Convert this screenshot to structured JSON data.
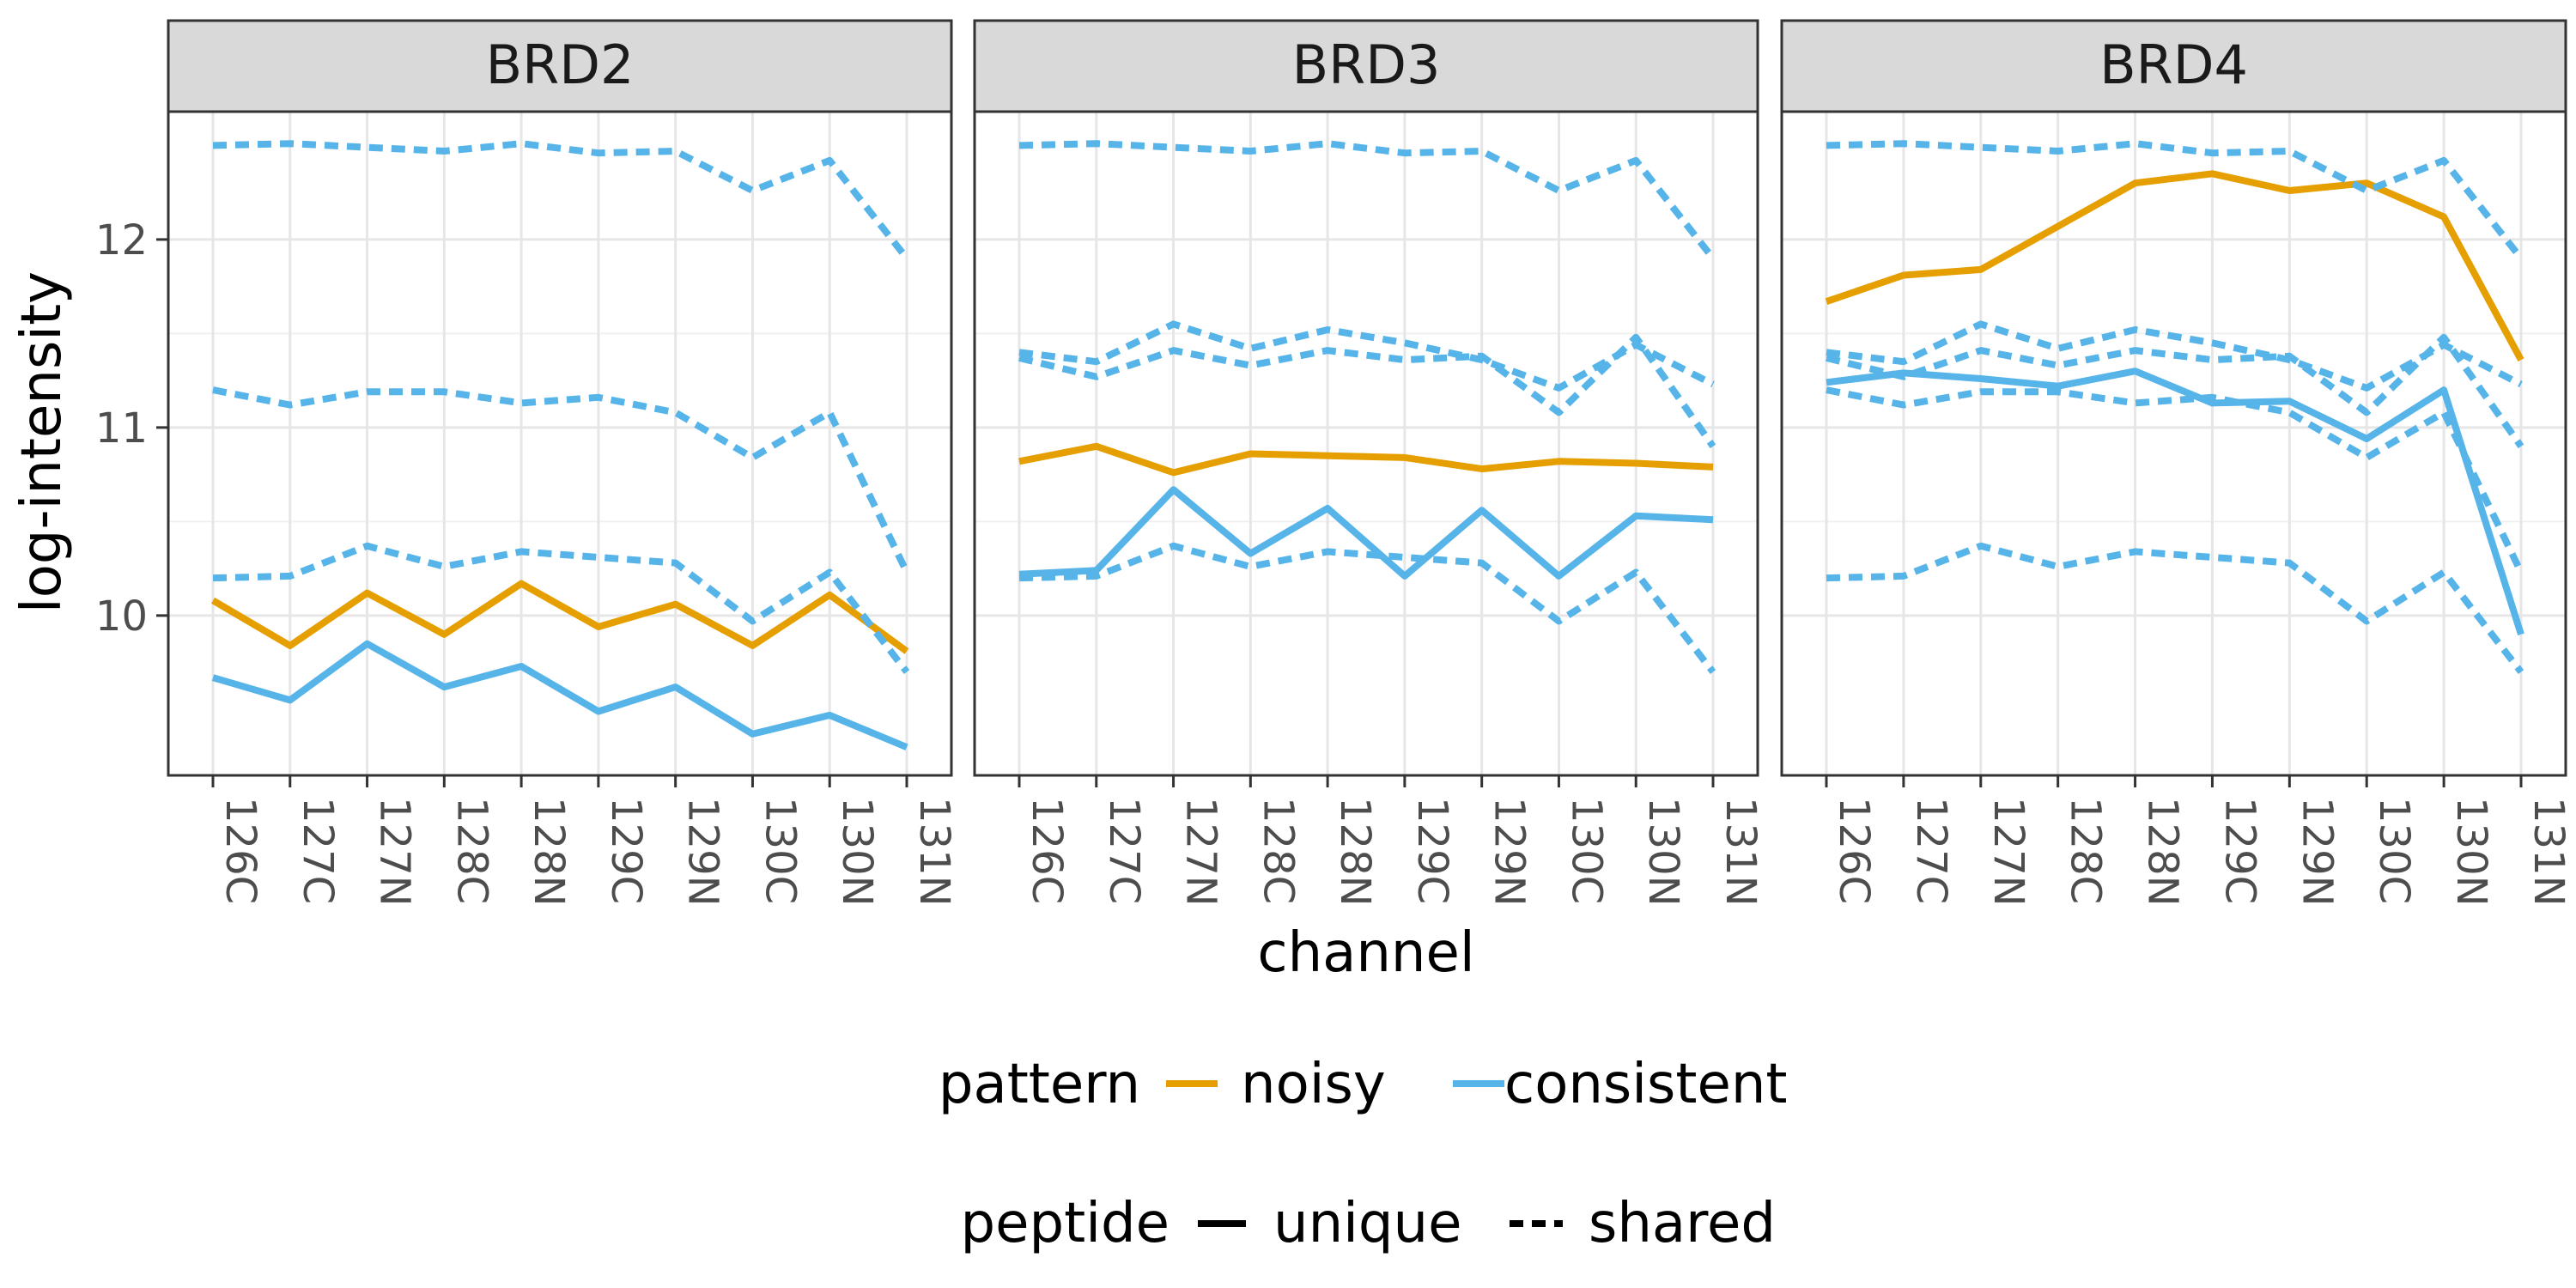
{
  "chart_data": {
    "type": "line",
    "facet_variable": "protein",
    "panels": [
      "BRD2",
      "BRD3",
      "BRD4"
    ],
    "x": [
      "126C",
      "127C",
      "127N",
      "128C",
      "128N",
      "129C",
      "129N",
      "130C",
      "130N",
      "131N"
    ],
    "xlabel": "channel",
    "ylabel": "log-intensity",
    "ylim": [
      9.15,
      12.68
    ],
    "yticks": [
      10,
      11,
      12
    ],
    "grid": true,
    "legend_position": "bottom",
    "legend": {
      "color": {
        "title": "pattern",
        "entries": [
          {
            "label": "noisy",
            "color": "#E69F00"
          },
          {
            "label": "consistent",
            "color": "#56B4E9"
          }
        ]
      },
      "linetype": {
        "title": "peptide",
        "entries": [
          {
            "label": "unique",
            "style": "solid"
          },
          {
            "label": "shared",
            "style": "dashed"
          }
        ]
      }
    },
    "shared_series": {
      "S1": {
        "pattern": "consistent",
        "peptide": "shared",
        "values": [
          12.5,
          12.51,
          12.49,
          12.47,
          12.51,
          12.46,
          12.47,
          12.26,
          12.42,
          11.9
        ]
      },
      "S2": {
        "pattern": "consistent",
        "peptide": "shared",
        "values": [
          11.2,
          11.12,
          11.19,
          11.19,
          11.13,
          11.16,
          11.08,
          10.84,
          11.08,
          10.23
        ]
      },
      "S3": {
        "pattern": "consistent",
        "peptide": "shared",
        "values": [
          10.2,
          10.21,
          10.37,
          10.26,
          10.34,
          10.31,
          10.28,
          9.97,
          10.23,
          9.7
        ]
      },
      "S4": {
        "pattern": "consistent",
        "peptide": "shared",
        "values": [
          11.4,
          11.35,
          11.55,
          11.42,
          11.52,
          11.45,
          11.36,
          11.21,
          11.44,
          11.23
        ]
      },
      "S5": {
        "pattern": "consistent",
        "peptide": "shared",
        "values": [
          11.37,
          11.27,
          11.41,
          11.33,
          11.41,
          11.36,
          11.38,
          11.08,
          11.48,
          10.9
        ]
      }
    },
    "series": [
      {
        "panel": "BRD2",
        "pattern": "noisy",
        "peptide": "unique",
        "values": [
          10.08,
          9.84,
          10.12,
          9.9,
          10.17,
          9.94,
          10.06,
          9.84,
          10.11,
          9.81
        ]
      },
      {
        "panel": "BRD2",
        "pattern": "consistent",
        "peptide": "unique",
        "values": [
          9.67,
          9.55,
          9.85,
          9.62,
          9.73,
          9.49,
          9.62,
          9.37,
          9.47,
          9.3
        ]
      },
      {
        "panel": "BRD2",
        "shared": "S1"
      },
      {
        "panel": "BRD2",
        "shared": "S2"
      },
      {
        "panel": "BRD2",
        "shared": "S3"
      },
      {
        "panel": "BRD3",
        "pattern": "noisy",
        "peptide": "unique",
        "values": [
          10.82,
          10.9,
          10.76,
          10.86,
          10.85,
          10.84,
          10.78,
          10.82,
          10.81,
          10.79
        ]
      },
      {
        "panel": "BRD3",
        "pattern": "consistent",
        "peptide": "unique",
        "values": [
          10.22,
          10.24,
          10.67,
          10.33,
          10.57,
          10.21,
          10.56,
          10.21,
          10.53,
          10.51
        ]
      },
      {
        "panel": "BRD3",
        "shared": "S1"
      },
      {
        "panel": "BRD3",
        "shared": "S4"
      },
      {
        "panel": "BRD3",
        "shared": "S5"
      },
      {
        "panel": "BRD3",
        "shared": "S3"
      },
      {
        "panel": "BRD4",
        "pattern": "noisy",
        "peptide": "unique",
        "values": [
          11.67,
          11.81,
          11.84,
          12.07,
          12.3,
          12.35,
          12.26,
          12.3,
          12.12,
          11.36
        ]
      },
      {
        "panel": "BRD4",
        "pattern": "consistent",
        "peptide": "unique",
        "values": [
          11.24,
          11.29,
          11.26,
          11.22,
          11.3,
          11.13,
          11.14,
          10.94,
          11.2,
          9.9
        ]
      },
      {
        "panel": "BRD4",
        "shared": "S1"
      },
      {
        "panel": "BRD4",
        "shared": "S2"
      },
      {
        "panel": "BRD4",
        "shared": "S3"
      },
      {
        "panel": "BRD4",
        "shared": "S4"
      },
      {
        "panel": "BRD4",
        "shared": "S5"
      }
    ]
  }
}
